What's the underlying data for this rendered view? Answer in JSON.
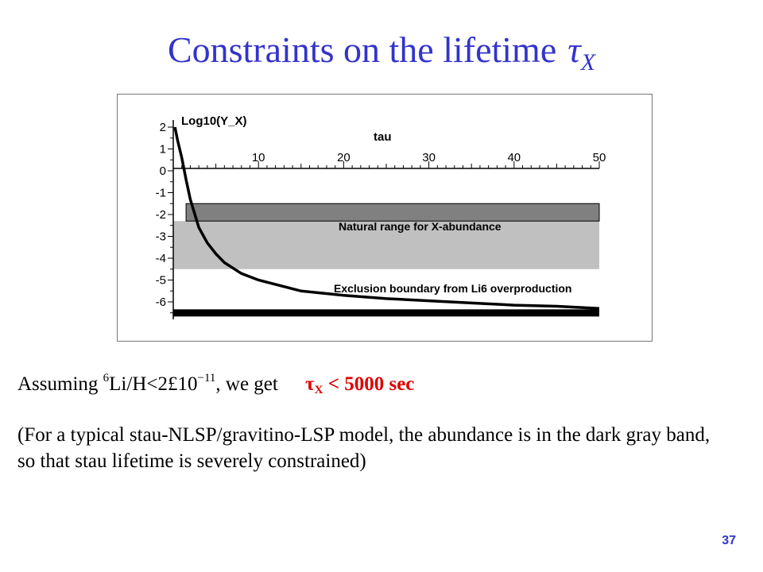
{
  "slide": {
    "title_text": "Constraints on the lifetime",
    "title_symbol": "τ",
    "title_symbol_sub": "X",
    "page_number": "37"
  },
  "body": {
    "line1_prefix": "Assuming ",
    "line1_sup": "6",
    "line1_middle": "Li/H<2£10",
    "line1_exp": "−11",
    "line1_suffix": ", we get",
    "result_symbol": "τ",
    "result_sub": "X",
    "result_text": " < 5000 sec",
    "paragraph": "(For a typical stau-NLSP/gravitino-LSP model, the abundance is in the dark gray band, so that stau lifetime is severely constrained)"
  },
  "colors": {
    "title": "#3333cc",
    "result": "#dd0000",
    "dark_band": "#808080",
    "light_band": "#c0c0c0",
    "curve": "#000000"
  },
  "chart_data": {
    "type": "line",
    "ylabel": "Log10(Y_X)",
    "xlabel": "tau",
    "xlim": [
      0,
      50
    ],
    "ylim": [
      -6.5,
      2.2
    ],
    "x_ticks": [
      10,
      20,
      30,
      40,
      50
    ],
    "y_ticks": [
      2,
      1,
      0,
      -1,
      -2,
      -3,
      -4,
      -5,
      -6
    ],
    "bands": [
      {
        "label": "",
        "y_range": [
          -2.3,
          -1.5
        ],
        "x_range": [
          1.5,
          50
        ],
        "color": "#808080"
      },
      {
        "label": "Natural range for X-abundance",
        "y_range": [
          -4.5,
          -2.3
        ],
        "x_range": [
          0,
          50
        ],
        "color": "#c0c0c0"
      }
    ],
    "series": [
      {
        "name": "Exclusion boundary from Li6 overproduction",
        "x": [
          0.2,
          0.5,
          1,
          1.5,
          2,
          3,
          4,
          5,
          6,
          8,
          10,
          15,
          20,
          25,
          30,
          35,
          40,
          45,
          50
        ],
        "y": [
          2.0,
          1.4,
          0.6,
          -0.4,
          -1.3,
          -2.6,
          -3.3,
          -3.8,
          -4.2,
          -4.7,
          -5.0,
          -5.5,
          -5.7,
          -5.85,
          -5.95,
          -6.05,
          -6.15,
          -6.2,
          -6.3
        ]
      }
    ],
    "baseline_y": -6.45
  }
}
